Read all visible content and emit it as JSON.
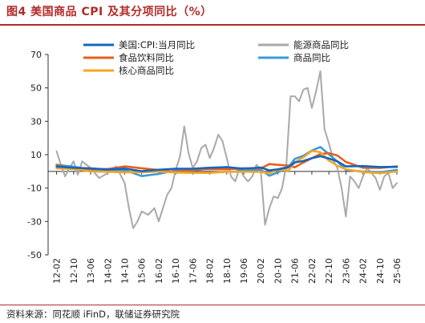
{
  "figure": {
    "title": "图4  美国商品 CPI 及其分项同比（%）",
    "source": "资料来源：同花顺 iFinD，联储证券研究院"
  },
  "chart_data": {
    "type": "line",
    "x_ticks": [
      "12-02",
      "12-10",
      "13-06",
      "14-02",
      "14-10",
      "15-06",
      "16-02",
      "16-10",
      "17-06",
      "18-02",
      "18-10",
      "19-06",
      "20-02",
      "20-10",
      "21-06",
      "22-02",
      "22-10",
      "23-06",
      "24-02",
      "24-10",
      "25-06"
    ],
    "ylim": [
      -50,
      70
    ],
    "y_ticks": [
      70,
      50,
      30,
      10,
      -10,
      -30,
      -50
    ],
    "legend_position": "top-inside",
    "series": [
      {
        "name": "美国:CPI:当月同比",
        "color": "#1565c0",
        "width": 2.6,
        "points": [
          [
            "12-02",
            2.9
          ],
          [
            "12-10",
            2.2
          ],
          [
            "13-06",
            1.8
          ],
          [
            "14-02",
            1.1
          ],
          [
            "14-10",
            1.7
          ],
          [
            "15-06",
            0.1
          ],
          [
            "16-02",
            1.0
          ],
          [
            "16-10",
            1.6
          ],
          [
            "17-06",
            1.6
          ],
          [
            "18-02",
            2.2
          ],
          [
            "18-10",
            2.5
          ],
          [
            "19-06",
            1.6
          ],
          [
            "20-02",
            2.3
          ],
          [
            "20-06",
            0.6
          ],
          [
            "20-10",
            1.2
          ],
          [
            "21-03",
            2.6
          ],
          [
            "21-06",
            5.4
          ],
          [
            "21-10",
            6.2
          ],
          [
            "22-02",
            7.9
          ],
          [
            "22-06",
            9.1
          ],
          [
            "22-10",
            7.7
          ],
          [
            "23-02",
            6.0
          ],
          [
            "23-06",
            3.0
          ],
          [
            "24-02",
            3.2
          ],
          [
            "24-10",
            2.6
          ],
          [
            "25-06",
            2.7
          ]
        ]
      },
      {
        "name": "能源商品同比",
        "color": "#a9a9a9",
        "width": 2.0,
        "points": [
          [
            "12-02",
            12
          ],
          [
            "12-04",
            4
          ],
          [
            "12-06",
            -3
          ],
          [
            "12-08",
            2
          ],
          [
            "12-10",
            6
          ],
          [
            "12-12",
            -2
          ],
          [
            "13-02",
            6
          ],
          [
            "13-06",
            2
          ],
          [
            "13-10",
            -4
          ],
          [
            "14-02",
            -1
          ],
          [
            "14-06",
            3
          ],
          [
            "14-10",
            -7
          ],
          [
            "14-12",
            -22
          ],
          [
            "15-02",
            -34
          ],
          [
            "15-04",
            -30
          ],
          [
            "15-06",
            -24
          ],
          [
            "15-09",
            -26
          ],
          [
            "15-12",
            -22
          ],
          [
            "16-02",
            -30
          ],
          [
            "16-04",
            -22
          ],
          [
            "16-06",
            -14
          ],
          [
            "16-08",
            -10
          ],
          [
            "16-10",
            1
          ],
          [
            "16-12",
            9
          ],
          [
            "17-02",
            27
          ],
          [
            "17-04",
            11
          ],
          [
            "17-06",
            2
          ],
          [
            "17-08",
            6
          ],
          [
            "17-10",
            14
          ],
          [
            "17-12",
            16
          ],
          [
            "18-02",
            8
          ],
          [
            "18-04",
            14
          ],
          [
            "18-06",
            22
          ],
          [
            "18-08",
            18
          ],
          [
            "18-10",
            8
          ],
          [
            "18-12",
            -3
          ],
          [
            "19-02",
            -6
          ],
          [
            "19-04",
            2
          ],
          [
            "19-06",
            -3
          ],
          [
            "19-08",
            -6
          ],
          [
            "19-10",
            -3
          ],
          [
            "19-12",
            4
          ],
          [
            "20-02",
            1
          ],
          [
            "20-04",
            -32
          ],
          [
            "20-06",
            -22
          ],
          [
            "20-08",
            -15
          ],
          [
            "20-10",
            -16
          ],
          [
            "20-12",
            -10
          ],
          [
            "21-02",
            4
          ],
          [
            "21-04",
            45
          ],
          [
            "21-06",
            45
          ],
          [
            "21-08",
            42
          ],
          [
            "21-10",
            49
          ],
          [
            "21-12",
            50
          ],
          [
            "22-02",
            38
          ],
          [
            "22-04",
            48
          ],
          [
            "22-06",
            60
          ],
          [
            "22-08",
            25
          ],
          [
            "22-10",
            17
          ],
          [
            "22-12",
            7
          ],
          [
            "23-02",
            2
          ],
          [
            "23-04",
            -10
          ],
          [
            "23-06",
            -27
          ],
          [
            "23-08",
            -3
          ],
          [
            "23-10",
            -6
          ],
          [
            "23-12",
            -10
          ],
          [
            "24-02",
            -3
          ],
          [
            "24-04",
            2
          ],
          [
            "24-06",
            -1
          ],
          [
            "24-08",
            -4
          ],
          [
            "24-10",
            -11
          ],
          [
            "24-12",
            -3
          ],
          [
            "25-02",
            -1
          ],
          [
            "25-04",
            -10
          ],
          [
            "25-06",
            -7
          ]
        ]
      },
      {
        "name": "食品饮料同比",
        "color": "#e8601c",
        "width": 2.6,
        "points": [
          [
            "12-02",
            3.6
          ],
          [
            "12-10",
            1.9
          ],
          [
            "13-06",
            1.4
          ],
          [
            "14-02",
            1.4
          ],
          [
            "14-10",
            3.0
          ],
          [
            "15-06",
            1.9
          ],
          [
            "16-02",
            0.8
          ],
          [
            "16-10",
            -0.3
          ],
          [
            "17-06",
            0.9
          ],
          [
            "18-02",
            1.4
          ],
          [
            "18-10",
            1.2
          ],
          [
            "19-06",
            1.9
          ],
          [
            "20-02",
            1.8
          ],
          [
            "20-06",
            4.4
          ],
          [
            "20-10",
            3.9
          ],
          [
            "21-03",
            3.5
          ],
          [
            "21-06",
            2.4
          ],
          [
            "21-10",
            5.3
          ],
          [
            "22-02",
            7.9
          ],
          [
            "22-06",
            10.4
          ],
          [
            "22-10",
            10.9
          ],
          [
            "23-02",
            9.5
          ],
          [
            "23-06",
            5.7
          ],
          [
            "24-02",
            2.2
          ],
          [
            "24-10",
            2.1
          ],
          [
            "25-06",
            3.0
          ]
        ]
      },
      {
        "name": "商品同比",
        "color": "#3a9ad9",
        "width": 2.6,
        "points": [
          [
            "12-02",
            4.0
          ],
          [
            "12-10",
            2.8
          ],
          [
            "13-06",
            1.1
          ],
          [
            "14-02",
            0.1
          ],
          [
            "14-10",
            0.8
          ],
          [
            "15-06",
            -2.8
          ],
          [
            "16-02",
            -1.5
          ],
          [
            "16-10",
            0.6
          ],
          [
            "17-06",
            0.5
          ],
          [
            "18-02",
            1.8
          ],
          [
            "18-10",
            2.5
          ],
          [
            "19-06",
            0.3
          ],
          [
            "20-02",
            1.0
          ],
          [
            "20-06",
            -2.6
          ],
          [
            "20-10",
            -0.6
          ],
          [
            "21-03",
            2.5
          ],
          [
            "21-06",
            7.5
          ],
          [
            "21-10",
            9.4
          ],
          [
            "22-02",
            12.5
          ],
          [
            "22-06",
            14.6
          ],
          [
            "22-10",
            10.3
          ],
          [
            "23-02",
            5.9
          ],
          [
            "23-06",
            0.9
          ],
          [
            "24-02",
            -0.1
          ],
          [
            "24-10",
            -0.5
          ],
          [
            "25-06",
            0.9
          ]
        ]
      },
      {
        "name": "核心商品同比",
        "color": "#f5a623",
        "width": 2.6,
        "points": [
          [
            "12-02",
            1.9
          ],
          [
            "12-10",
            1.4
          ],
          [
            "13-06",
            0.0
          ],
          [
            "14-02",
            -0.2
          ],
          [
            "14-10",
            -0.5
          ],
          [
            "15-06",
            -0.5
          ],
          [
            "16-02",
            -0.1
          ],
          [
            "16-10",
            -0.7
          ],
          [
            "17-06",
            -0.9
          ],
          [
            "18-02",
            -0.9
          ],
          [
            "18-10",
            -0.2
          ],
          [
            "19-06",
            -0.2
          ],
          [
            "20-02",
            -0.3
          ],
          [
            "20-06",
            -1.2
          ],
          [
            "20-10",
            1.0
          ],
          [
            "21-03",
            0.5
          ],
          [
            "21-06",
            5.5
          ],
          [
            "21-10",
            8.4
          ],
          [
            "22-02",
            12.3
          ],
          [
            "22-06",
            11.5
          ],
          [
            "22-10",
            6.5
          ],
          [
            "23-02",
            3.4
          ],
          [
            "23-06",
            1.3
          ],
          [
            "24-02",
            -0.4
          ],
          [
            "24-10",
            -1.1
          ],
          [
            "25-06",
            -0.1
          ]
        ]
      }
    ]
  }
}
